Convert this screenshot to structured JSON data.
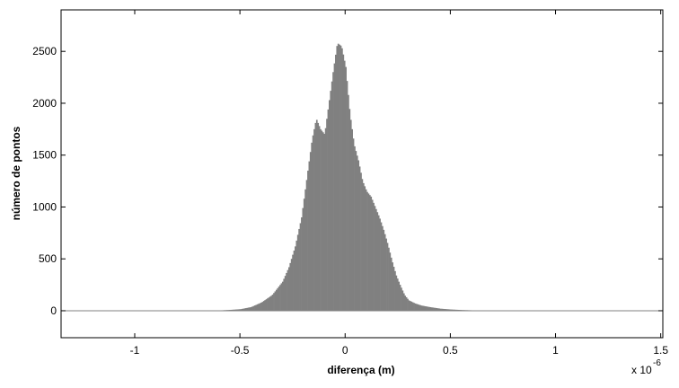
{
  "chart_data": {
    "type": "bar",
    "title": "",
    "xlabel": "diferença (m)",
    "ylabel": "número de pontos",
    "x_multiplier_label": "x 10",
    "x_multiplier_exponent": "-6",
    "xlim": [
      -1.35,
      1.51
    ],
    "ylim": [
      -260,
      2900
    ],
    "xticks": [
      -1,
      -0.5,
      0,
      0.5,
      1,
      1.5
    ],
    "xtick_labels": [
      "-1",
      "-0.5",
      "0",
      "0.5",
      "1",
      "1.5"
    ],
    "yticks": [
      0,
      500,
      1000,
      1500,
      2000,
      2500
    ],
    "ytick_labels": [
      "0",
      "500",
      "1000",
      "1500",
      "2000",
      "2500"
    ],
    "grid": false,
    "bar_color": "#808080",
    "baseline_color": "#808080",
    "series": [
      {
        "x": [
          -0.6,
          -0.55,
          -0.5,
          -0.45,
          -0.4,
          -0.35,
          -0.3,
          -0.27,
          -0.24,
          -0.21,
          -0.18,
          -0.16,
          -0.14,
          -0.12,
          -0.1,
          -0.08,
          -0.06,
          -0.04,
          -0.02,
          0.0,
          0.02,
          0.04,
          0.06,
          0.08,
          0.1,
          0.12,
          0.14,
          0.16,
          0.18,
          0.2,
          0.22,
          0.24,
          0.26,
          0.28,
          0.3,
          0.33,
          0.36,
          0.4,
          0.45,
          0.5,
          0.55,
          0.6,
          0.65,
          0.7
        ],
        "values": [
          3,
          8,
          15,
          35,
          80,
          150,
          280,
          420,
          620,
          900,
          1350,
          1650,
          1850,
          1750,
          1700,
          2000,
          2300,
          2580,
          2550,
          2350,
          1900,
          1600,
          1450,
          1250,
          1150,
          1100,
          1000,
          900,
          780,
          640,
          480,
          340,
          240,
          150,
          100,
          70,
          50,
          35,
          20,
          12,
          7,
          4,
          2,
          1
        ]
      }
    ]
  }
}
